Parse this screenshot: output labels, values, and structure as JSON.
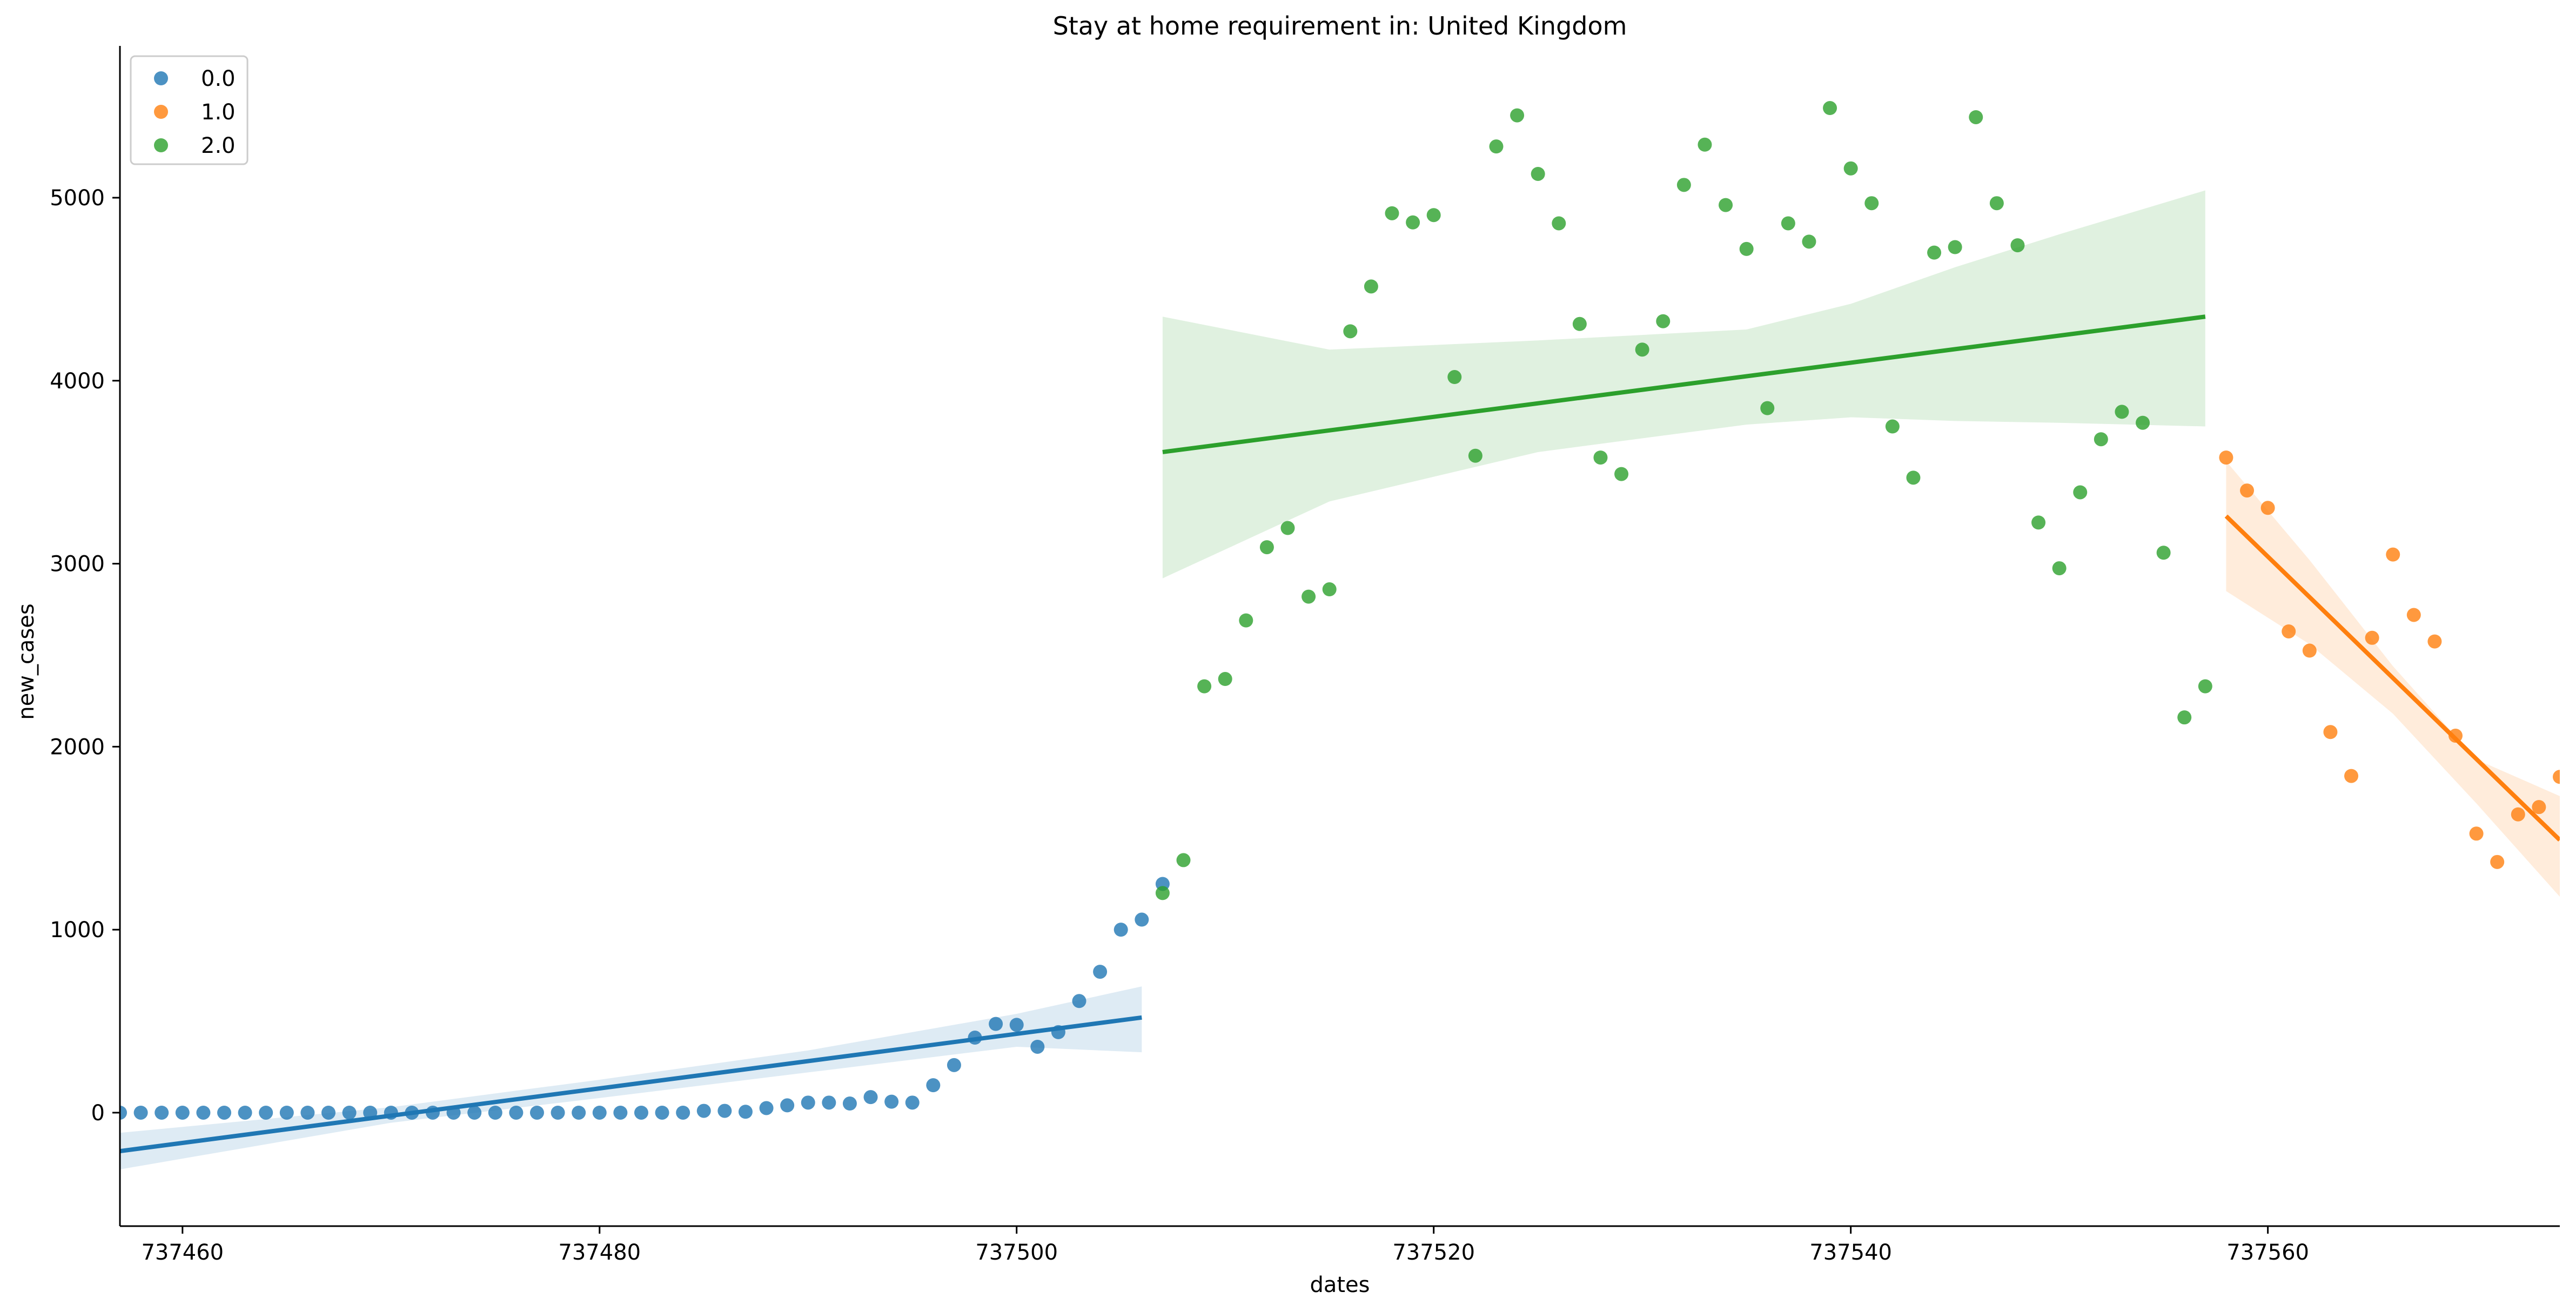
{
  "chart_data": {
    "type": "scatter",
    "title": "Stay at home requirement in: United Kingdom",
    "xlabel": "dates",
    "ylabel": "new_cases",
    "xlim": [
      737457,
      737574
    ],
    "ylim": [
      -620,
      5800
    ],
    "xticks": [
      737460,
      737480,
      737500,
      737520,
      737540,
      737560
    ],
    "yticks": [
      0,
      1000,
      2000,
      3000,
      4000,
      5000
    ],
    "grid": false,
    "legend_position": "top-left",
    "series": [
      {
        "name": "0.0",
        "color": "#1f77b4",
        "points": [
          [
            737457,
            0
          ],
          [
            737458,
            0
          ],
          [
            737459,
            0
          ],
          [
            737460,
            0
          ],
          [
            737461,
            0
          ],
          [
            737462,
            0
          ],
          [
            737463,
            0
          ],
          [
            737464,
            0
          ],
          [
            737465,
            0
          ],
          [
            737466,
            0
          ],
          [
            737467,
            0
          ],
          [
            737468,
            0
          ],
          [
            737469,
            0
          ],
          [
            737470,
            0
          ],
          [
            737471,
            0
          ],
          [
            737472,
            0
          ],
          [
            737473,
            0
          ],
          [
            737474,
            0
          ],
          [
            737475,
            0
          ],
          [
            737476,
            0
          ],
          [
            737477,
            0
          ],
          [
            737478,
            0
          ],
          [
            737479,
            0
          ],
          [
            737480,
            0
          ],
          [
            737481,
            0
          ],
          [
            737482,
            0
          ],
          [
            737483,
            0
          ],
          [
            737484,
            0
          ],
          [
            737485,
            10
          ],
          [
            737486,
            10
          ],
          [
            737487,
            5
          ],
          [
            737488,
            25
          ],
          [
            737489,
            40
          ],
          [
            737490,
            55
          ],
          [
            737491,
            55
          ],
          [
            737492,
            50
          ],
          [
            737493,
            85
          ],
          [
            737494,
            60
          ],
          [
            737495,
            55
          ],
          [
            737496,
            150
          ],
          [
            737497,
            260
          ],
          [
            737498,
            410
          ],
          [
            737499,
            485
          ],
          [
            737500,
            480
          ],
          [
            737501,
            360
          ],
          [
            737502,
            440
          ],
          [
            737503,
            610
          ],
          [
            737504,
            770
          ],
          [
            737505,
            1000
          ],
          [
            737506,
            1055
          ],
          [
            737507,
            1250
          ]
        ],
        "regression": {
          "x": [
            737457,
            737506
          ],
          "y": [
            -210,
            520
          ]
        },
        "ci_upper": [
          [
            737457,
            -110
          ],
          [
            737470,
            30
          ],
          [
            737480,
            180
          ],
          [
            737490,
            340
          ],
          [
            737500,
            540
          ],
          [
            737506,
            690
          ]
        ],
        "ci_lower": [
          [
            737457,
            -310
          ],
          [
            737470,
            -55
          ],
          [
            737480,
            80
          ],
          [
            737490,
            220
          ],
          [
            737500,
            360
          ],
          [
            737506,
            330
          ]
        ]
      },
      {
        "name": "1.0",
        "color": "#ff7f0e",
        "points": [
          [
            737558,
            3580
          ],
          [
            737559,
            3400
          ],
          [
            737560,
            3305
          ],
          [
            737561,
            2630
          ],
          [
            737562,
            2525
          ],
          [
            737563,
            2080
          ],
          [
            737564,
            1840
          ],
          [
            737565,
            2595
          ],
          [
            737566,
            3050
          ],
          [
            737567,
            2720
          ],
          [
            737568,
            2575
          ],
          [
            737569,
            2060
          ],
          [
            737570,
            1525
          ],
          [
            737571,
            1370
          ],
          [
            737572,
            1630
          ],
          [
            737573,
            1670
          ],
          [
            737574,
            1835
          ]
        ],
        "regression": {
          "x": [
            737558,
            737574
          ],
          "y": [
            3260,
            1490
          ]
        },
        "ci_upper": [
          [
            737558,
            3560
          ],
          [
            737562,
            3020
          ],
          [
            737566,
            2440
          ],
          [
            737570,
            1930
          ],
          [
            737574,
            1730
          ]
        ],
        "ci_lower": [
          [
            737558,
            2850
          ],
          [
            737562,
            2560
          ],
          [
            737566,
            2180
          ],
          [
            737570,
            1690
          ],
          [
            737574,
            1180
          ]
        ]
      },
      {
        "name": "2.0",
        "color": "#2ca02c",
        "points": [
          [
            737507,
            1200
          ],
          [
            737508,
            1380
          ],
          [
            737509,
            2330
          ],
          [
            737510,
            2370
          ],
          [
            737511,
            2690
          ],
          [
            737512,
            3090
          ],
          [
            737513,
            3195
          ],
          [
            737514,
            2820
          ],
          [
            737515,
            2860
          ],
          [
            737516,
            4270
          ],
          [
            737517,
            4515
          ],
          [
            737518,
            4915
          ],
          [
            737519,
            4865
          ],
          [
            737520,
            4905
          ],
          [
            737521,
            4020
          ],
          [
            737522,
            3590
          ],
          [
            737523,
            5280
          ],
          [
            737524,
            5450
          ],
          [
            737525,
            5130
          ],
          [
            737526,
            4860
          ],
          [
            737527,
            4310
          ],
          [
            737528,
            3580
          ],
          [
            737529,
            3490
          ],
          [
            737530,
            4170
          ],
          [
            737531,
            4325
          ],
          [
            737532,
            5070
          ],
          [
            737533,
            5290
          ],
          [
            737534,
            4960
          ],
          [
            737535,
            4720
          ],
          [
            737536,
            3850
          ],
          [
            737537,
            4860
          ],
          [
            737538,
            4760
          ],
          [
            737539,
            5490
          ],
          [
            737540,
            5160
          ],
          [
            737541,
            4970
          ],
          [
            737542,
            3750
          ],
          [
            737543,
            3470
          ],
          [
            737544,
            4700
          ],
          [
            737545,
            4730
          ],
          [
            737546,
            5440
          ],
          [
            737547,
            4970
          ],
          [
            737548,
            4740
          ],
          [
            737549,
            3225
          ],
          [
            737550,
            2975
          ],
          [
            737551,
            3390
          ],
          [
            737552,
            3680
          ],
          [
            737553,
            3830
          ],
          [
            737554,
            3770
          ],
          [
            737555,
            3060
          ],
          [
            737556,
            2160
          ],
          [
            737557,
            2330
          ]
        ],
        "regression": {
          "x": [
            737507,
            737557
          ],
          "y": [
            3610,
            4350
          ]
        },
        "ci_upper": [
          [
            737507,
            4350
          ],
          [
            737515,
            4170
          ],
          [
            737525,
            4220
          ],
          [
            737535,
            4280
          ],
          [
            737540,
            4420
          ],
          [
            737545,
            4620
          ],
          [
            737550,
            4800
          ],
          [
            737557,
            5040
          ]
        ],
        "ci_lower": [
          [
            737507,
            2920
          ],
          [
            737515,
            3340
          ],
          [
            737525,
            3610
          ],
          [
            737535,
            3760
          ],
          [
            737540,
            3800
          ],
          [
            737545,
            3780
          ],
          [
            737550,
            3770
          ],
          [
            737557,
            3750
          ]
        ]
      }
    ]
  }
}
